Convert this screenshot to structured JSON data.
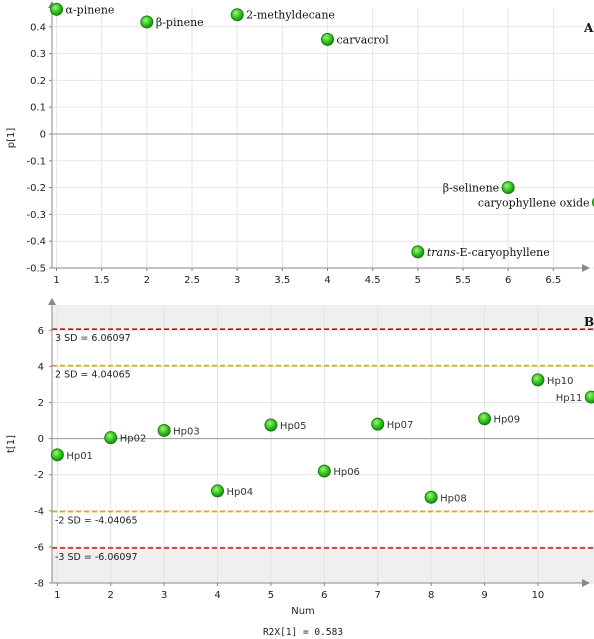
{
  "chart_data": [
    {
      "type": "scatter",
      "panel_label": "A",
      "ylabel": "p[1]",
      "xlim": [
        0.95,
        6.95
      ],
      "ylim": [
        -0.5,
        0.47
      ],
      "xticks": [
        "1",
        "1.5",
        "2",
        "2.5",
        "3",
        "3.5",
        "4",
        "4.5",
        "5",
        "5.5",
        "6",
        "6.5"
      ],
      "yticks": [
        "0.4",
        "0.3",
        "0.2",
        "0.1",
        "0",
        "-0.1",
        "-0.2",
        "-0.3",
        "-0.4",
        "-0.5"
      ],
      "grid": true,
      "points": [
        {
          "x": 1,
          "y": 0.465,
          "label": "α-pinene",
          "label_pos": "right",
          "italic_prefix": ""
        },
        {
          "x": 2,
          "y": 0.418,
          "label": "β-pinene",
          "label_pos": "right",
          "italic_prefix": ""
        },
        {
          "x": 3,
          "y": 0.445,
          "label": "2-methyldecane",
          "label_pos": "right",
          "italic_prefix": ""
        },
        {
          "x": 4,
          "y": 0.353,
          "label": "carvacrol",
          "label_pos": "right",
          "italic_prefix": ""
        },
        {
          "x": 5,
          "y": -0.44,
          "label": "-E-caryophyllene",
          "label_pos": "right",
          "italic_prefix": "trans"
        },
        {
          "x": 6,
          "y": -0.2,
          "label": "β-selinene",
          "label_pos": "left",
          "italic_prefix": ""
        },
        {
          "x": 7,
          "y": -0.255,
          "label": "caryophyllene oxide",
          "label_pos": "left",
          "italic_prefix": ""
        }
      ],
      "marker_color": "#33cc22"
    },
    {
      "type": "scatter",
      "panel_label": "B",
      "xlabel": "Num",
      "ylabel": "t[1]",
      "xlim": [
        0.9,
        11.05
      ],
      "ylim": [
        -8,
        7.4
      ],
      "xticks": [
        "1",
        "2",
        "3",
        "4",
        "5",
        "6",
        "7",
        "8",
        "9",
        "10"
      ],
      "yticks": [
        "6",
        "4",
        "2",
        "0",
        "-2",
        "-4",
        "-6",
        "-8"
      ],
      "grid": true,
      "points": [
        {
          "x": 1,
          "y": -0.9,
          "label": "Hp01"
        },
        {
          "x": 2,
          "y": 0.05,
          "label": "Hp02"
        },
        {
          "x": 3,
          "y": 0.45,
          "label": "Hp03"
        },
        {
          "x": 4,
          "y": -2.9,
          "label": "Hp04"
        },
        {
          "x": 5,
          "y": 0.75,
          "label": "Hp05"
        },
        {
          "x": 6,
          "y": -1.8,
          "label": "Hp06"
        },
        {
          "x": 7,
          "y": 0.8,
          "label": "Hp07"
        },
        {
          "x": 8,
          "y": -3.25,
          "label": "Hp08"
        },
        {
          "x": 9,
          "y": 1.1,
          "label": "Hp09"
        },
        {
          "x": 10,
          "y": 3.25,
          "label": "Hp10"
        },
        {
          "x": 11,
          "y": 2.3,
          "label": "Hp11",
          "label_pos": "left"
        }
      ],
      "reference_lines": [
        {
          "y": 6.06097,
          "label": "3 SD = 6.06097",
          "color": "#cc1111",
          "style": "dashed"
        },
        {
          "y": 4.04065,
          "label": "2 SD = 4.04065",
          "color": "#e0a600",
          "style": "dashed"
        },
        {
          "y": -4.04065,
          "label": "-2 SD = -4.04065",
          "color": "#e0a600",
          "style": "dashed"
        },
        {
          "y": -6.06097,
          "label": "-3 SD = -6.06097",
          "color": "#cc1111",
          "style": "dashed"
        }
      ],
      "footer": "R2X[1] = 0.583",
      "marker_color": "#33cc22"
    }
  ]
}
